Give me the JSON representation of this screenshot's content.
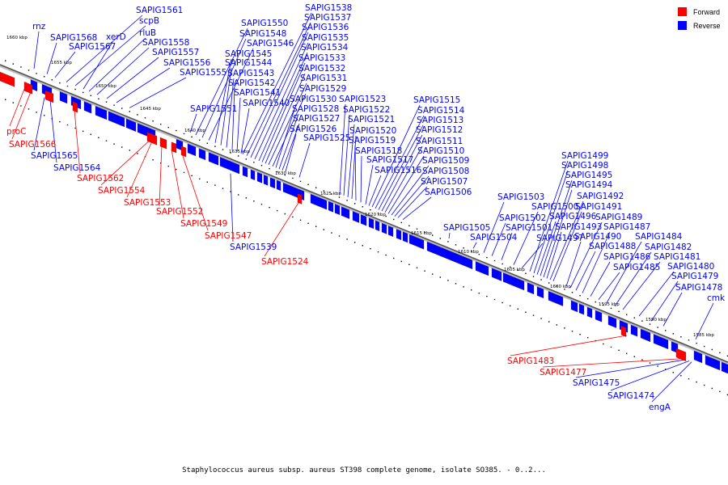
{
  "colors": {
    "forward": "#ff0000",
    "reverse": "#0000ff",
    "axis": "#8a8a8a"
  },
  "legend": {
    "forward_label": "Forward",
    "reverse_label": "Reverse"
  },
  "caption": "Staphylococcus aureus subsp. aureus ST398 complete genome, isolate SO385. - 0..2...",
  "ticks": [
    "1660 kbp",
    "1655 kbp",
    "1650 kbp",
    "1645 kbp",
    "1640 kbp",
    "1635 kbp",
    "1630 kbp",
    "1625 kbp",
    "1620 kbp",
    "1615 kbp",
    "1610 kbp",
    "1605 kbp",
    "1600 kbp",
    "1595 kbp",
    "1590 kbp",
    "1585 kbp"
  ],
  "genes": [
    {
      "name": "rnz",
      "strand": "reverse"
    },
    {
      "name": "SAPIG1568",
      "strand": "reverse"
    },
    {
      "name": "SAPIG1567",
      "strand": "reverse"
    },
    {
      "name": "SAPIG1561",
      "strand": "reverse"
    },
    {
      "name": "scpB",
      "strand": "reverse"
    },
    {
      "name": "xerD",
      "strand": "reverse"
    },
    {
      "name": "rluB",
      "strand": "reverse"
    },
    {
      "name": "SAPIG1558",
      "strand": "reverse"
    },
    {
      "name": "SAPIG1557",
      "strand": "reverse"
    },
    {
      "name": "SAPIG1556",
      "strand": "reverse"
    },
    {
      "name": "SAPIG1555",
      "strand": "reverse"
    },
    {
      "name": "SAPIG1551",
      "strand": "reverse"
    },
    {
      "name": "SAPIG1550",
      "strand": "reverse"
    },
    {
      "name": "SAPIG1548",
      "strand": "reverse"
    },
    {
      "name": "SAPIG1546",
      "strand": "reverse"
    },
    {
      "name": "SAPIG1545",
      "strand": "reverse"
    },
    {
      "name": "SAPIG1544",
      "strand": "reverse"
    },
    {
      "name": "SAPIG1543",
      "strand": "reverse"
    },
    {
      "name": "SAPIG1542",
      "strand": "reverse"
    },
    {
      "name": "SAPIG1541",
      "strand": "reverse"
    },
    {
      "name": "SAPIG1540",
      "strand": "reverse"
    },
    {
      "name": "SAPIG1538",
      "strand": "reverse"
    },
    {
      "name": "SAPIG1537",
      "strand": "reverse"
    },
    {
      "name": "SAPIG1536",
      "strand": "reverse"
    },
    {
      "name": "SAPIG1535",
      "strand": "reverse"
    },
    {
      "name": "SAPIG1534",
      "strand": "reverse"
    },
    {
      "name": "SAPIG1533",
      "strand": "reverse"
    },
    {
      "name": "SAPIG1532",
      "strand": "reverse"
    },
    {
      "name": "SAPIG1531",
      "strand": "reverse"
    },
    {
      "name": "SAPIG1529",
      "strand": "reverse"
    },
    {
      "name": "SAPIG1530",
      "strand": "reverse"
    },
    {
      "name": "SAPIG1528",
      "strand": "reverse"
    },
    {
      "name": "SAPIG1527",
      "strand": "reverse"
    },
    {
      "name": "SAPIG1526",
      "strand": "reverse"
    },
    {
      "name": "SAPIG1525",
      "strand": "reverse"
    },
    {
      "name": "SAPIG1523",
      "strand": "reverse"
    },
    {
      "name": "SAPIG1522",
      "strand": "reverse"
    },
    {
      "name": "SAPIG1521",
      "strand": "reverse"
    },
    {
      "name": "SAPIG1520",
      "strand": "reverse"
    },
    {
      "name": "SAPIG1519",
      "strand": "reverse"
    },
    {
      "name": "SAPIG1518",
      "strand": "reverse"
    },
    {
      "name": "SAPIG1517",
      "strand": "reverse"
    },
    {
      "name": "SAPIG1516",
      "strand": "reverse"
    },
    {
      "name": "SAPIG1515",
      "strand": "reverse"
    },
    {
      "name": "SAPIG1514",
      "strand": "reverse"
    },
    {
      "name": "SAPIG1513",
      "strand": "reverse"
    },
    {
      "name": "SAPIG1512",
      "strand": "reverse"
    },
    {
      "name": "SAPIG1511",
      "strand": "reverse"
    },
    {
      "name": "SAPIG1510",
      "strand": "reverse"
    },
    {
      "name": "SAPIG1509",
      "strand": "reverse"
    },
    {
      "name": "SAPIG1508",
      "strand": "reverse"
    },
    {
      "name": "SAPIG1507",
      "strand": "reverse"
    },
    {
      "name": "SAPIG1506",
      "strand": "reverse"
    },
    {
      "name": "SAPIG1505",
      "strand": "reverse"
    },
    {
      "name": "SAPIG1504",
      "strand": "reverse"
    },
    {
      "name": "SAPIG1503",
      "strand": "reverse"
    },
    {
      "name": "SAPIG1502",
      "strand": "reverse"
    },
    {
      "name": "SAPIG1501",
      "strand": "reverse"
    },
    {
      "name": "SAPIG1500",
      "strand": "reverse"
    },
    {
      "name": "SAPIG1499",
      "strand": "reverse"
    },
    {
      "name": "SAPIG1498",
      "strand": "reverse"
    },
    {
      "name": "SAPIG1497",
      "strand": "reverse"
    },
    {
      "name": "SAPIG1496",
      "strand": "reverse"
    },
    {
      "name": "SAPIG1495",
      "strand": "reverse"
    },
    {
      "name": "SAPIG1494",
      "strand": "reverse"
    },
    {
      "name": "SAPIG1493",
      "strand": "reverse"
    },
    {
      "name": "SAPIG1492",
      "strand": "reverse"
    },
    {
      "name": "SAPIG1491",
      "strand": "reverse"
    },
    {
      "name": "SAPIG1490",
      "strand": "reverse"
    },
    {
      "name": "SAPIG1489",
      "strand": "reverse"
    },
    {
      "name": "SAPIG1488",
      "strand": "reverse"
    },
    {
      "name": "SAPIG1487",
      "strand": "reverse"
    },
    {
      "name": "SAPIG1486",
      "strand": "reverse"
    },
    {
      "name": "SAPIG1485",
      "strand": "reverse"
    },
    {
      "name": "SAPIG1484",
      "strand": "reverse"
    },
    {
      "name": "SAPIG1482",
      "strand": "reverse"
    },
    {
      "name": "SAPIG1481",
      "strand": "reverse"
    },
    {
      "name": "SAPIG1480",
      "strand": "reverse"
    },
    {
      "name": "SAPIG1479",
      "strand": "reverse"
    },
    {
      "name": "SAPIG1478",
      "strand": "reverse"
    },
    {
      "name": "cmk",
      "strand": "reverse"
    },
    {
      "name": "proC",
      "strand": "forward"
    },
    {
      "name": "SAPIG1566",
      "strand": "forward"
    },
    {
      "name": "SAPIG1565",
      "strand": "reverse"
    },
    {
      "name": "SAPIG1564",
      "strand": "reverse"
    },
    {
      "name": "SAPIG1562",
      "strand": "forward"
    },
    {
      "name": "SAPIG1554",
      "strand": "forward"
    },
    {
      "name": "SAPIG1553",
      "strand": "forward"
    },
    {
      "name": "SAPIG1552",
      "strand": "forward"
    },
    {
      "name": "SAPIG1549",
      "strand": "forward"
    },
    {
      "name": "SAPIG1547",
      "strand": "forward"
    },
    {
      "name": "SAPIG1539",
      "strand": "reverse"
    },
    {
      "name": "SAPIG1524",
      "strand": "forward"
    },
    {
      "name": "SAPIG1483",
      "strand": "forward"
    },
    {
      "name": "SAPIG1477",
      "strand": "forward"
    },
    {
      "name": "SAPIG1475",
      "strand": "reverse"
    },
    {
      "name": "SAPIG1474",
      "strand": "reverse"
    },
    {
      "name": "engA",
      "strand": "reverse"
    }
  ]
}
